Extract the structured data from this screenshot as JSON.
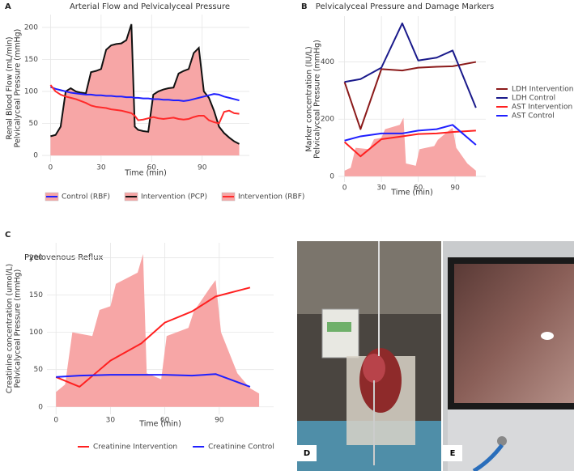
{
  "chart_data": [
    {
      "type": "line",
      "panel": "A",
      "title": "Arterial Flow and Pelvicalyceal Pressure",
      "xlabel": "Time (min)",
      "ylabel": [
        "Renal Blood Flow (mL/min)",
        "Pelvicalyceal Pressure (mmHg)"
      ],
      "x": [
        0,
        3,
        6,
        9,
        12,
        15,
        18,
        21,
        24,
        27,
        30,
        33,
        36,
        39,
        42,
        45,
        48,
        50,
        52,
        55,
        58,
        61,
        64,
        67,
        70,
        73,
        76,
        79,
        82,
        85,
        88,
        91,
        94,
        97,
        100,
        103,
        106,
        109,
        112
      ],
      "xlim": [
        -5,
        118
      ],
      "xticks": [
        0,
        30,
        60,
        90
      ],
      "ylim": [
        -10,
        220
      ],
      "yticks": [
        0,
        50,
        100,
        150,
        200
      ],
      "grid": true,
      "legend": "bottom",
      "series": [
        {
          "name": "Control (RBF)",
          "color": "#1f1fff",
          "values": [
            107,
            104,
            102,
            100,
            98,
            97,
            96,
            95,
            95,
            94,
            94,
            93,
            93,
            92,
            92,
            91,
            91,
            90,
            90,
            89,
            89,
            88,
            88,
            87,
            87,
            86,
            86,
            85,
            86,
            88,
            90,
            92,
            94,
            96,
            95,
            92,
            90,
            88,
            86
          ]
        },
        {
          "name": "Intervention (PCP)",
          "type": "area",
          "color": "#f7a6a6",
          "line_color": "#111111",
          "values": [
            30,
            32,
            45,
            100,
            105,
            100,
            98,
            97,
            130,
            132,
            135,
            165,
            172,
            174,
            175,
            180,
            205,
            45,
            40,
            38,
            37,
            95,
            100,
            103,
            105,
            106,
            128,
            132,
            135,
            160,
            168,
            100,
            90,
            70,
            45,
            35,
            28,
            22,
            18
          ]
        },
        {
          "name": "Intervention (RBF)",
          "color": "#ff2a2a",
          "values": [
            110,
            100,
            95,
            92,
            90,
            88,
            85,
            82,
            78,
            76,
            75,
            74,
            72,
            71,
            70,
            68,
            66,
            62,
            55,
            56,
            58,
            60,
            58,
            57,
            58,
            59,
            57,
            56,
            57,
            60,
            62,
            62,
            55,
            52,
            50,
            68,
            70,
            66,
            65
          ]
        }
      ]
    },
    {
      "type": "line",
      "panel": "B",
      "title": "Pelvicalyceal Pressure and Damage Markers",
      "xlabel": "Time (min)",
      "ylabel": [
        "Marker concentration (IU/L)",
        "Pelvicalyceal Pressure (mmHg)"
      ],
      "x": [
        0,
        13,
        30,
        47,
        60,
        75,
        88,
        107
      ],
      "xlim": [
        -5,
        115
      ],
      "xticks": [
        0,
        30,
        60,
        90
      ],
      "ylim": [
        -20,
        560
      ],
      "yticks": [
        0,
        200,
        400
      ],
      "grid": true,
      "legend": "right",
      "series": [
        {
          "type": "area",
          "color": "#f7a6a6",
          "x": [
            0,
            5,
            9,
            20,
            24,
            30,
            33,
            45,
            48,
            50,
            58,
            61,
            73,
            76,
            85,
            88,
            91,
            100,
            107
          ],
          "values": [
            20,
            30,
            100,
            95,
            130,
            135,
            165,
            180,
            205,
            45,
            37,
            95,
            106,
            128,
            160,
            170,
            100,
            45,
            20
          ]
        },
        {
          "name": "LDH Intervention",
          "color": "#8b1a1a",
          "values": [
            330,
            165,
            375,
            370,
            380,
            383,
            385,
            400
          ]
        },
        {
          "name": "LDH Control",
          "color": "#1a1a8b",
          "values": [
            330,
            340,
            380,
            535,
            405,
            415,
            440,
            240
          ]
        },
        {
          "name": "AST Intervention",
          "color": "#ff2020",
          "values": [
            120,
            70,
            130,
            140,
            148,
            150,
            155,
            160
          ]
        },
        {
          "name": "AST Control",
          "color": "#2020ff",
          "values": [
            125,
            140,
            150,
            150,
            160,
            165,
            180,
            110
          ]
        }
      ]
    },
    {
      "type": "line",
      "panel": "C",
      "title": "Pyelovenous Reflux",
      "xlabel": "Time (min)",
      "ylabel": [
        "Creatinine concentration (umol/L)",
        "Pelvicalyceal Pressure (mmHg)"
      ],
      "x": [
        0,
        13,
        30,
        47,
        60,
        75,
        88,
        107
      ],
      "xlim": [
        -5,
        120
      ],
      "xticks": [
        0,
        30,
        60,
        90
      ],
      "ylim": [
        -10,
        220
      ],
      "yticks": [
        0,
        50,
        100,
        150,
        200
      ],
      "grid": true,
      "legend": "bottom",
      "series": [
        {
          "type": "area",
          "color": "#f7a6a6",
          "x": [
            0,
            5,
            9,
            20,
            24,
            30,
            33,
            45,
            48,
            50,
            58,
            61,
            73,
            76,
            85,
            88,
            91,
            100,
            107,
            112
          ],
          "values": [
            20,
            30,
            100,
            95,
            130,
            135,
            165,
            180,
            205,
            45,
            37,
            95,
            106,
            128,
            160,
            170,
            100,
            45,
            25,
            18
          ]
        },
        {
          "name": "Creatinine Intervention",
          "color": "#ff2020",
          "values": [
            40,
            27,
            62,
            85,
            113,
            128,
            148,
            160
          ]
        },
        {
          "name": "Creatinine Control",
          "color": "#2020ff",
          "values": [
            40,
            42,
            43,
            43,
            43,
            42,
            44,
            27
          ]
        }
      ]
    }
  ],
  "photos": [
    {
      "panel": "D"
    },
    {
      "panel": "E"
    }
  ]
}
